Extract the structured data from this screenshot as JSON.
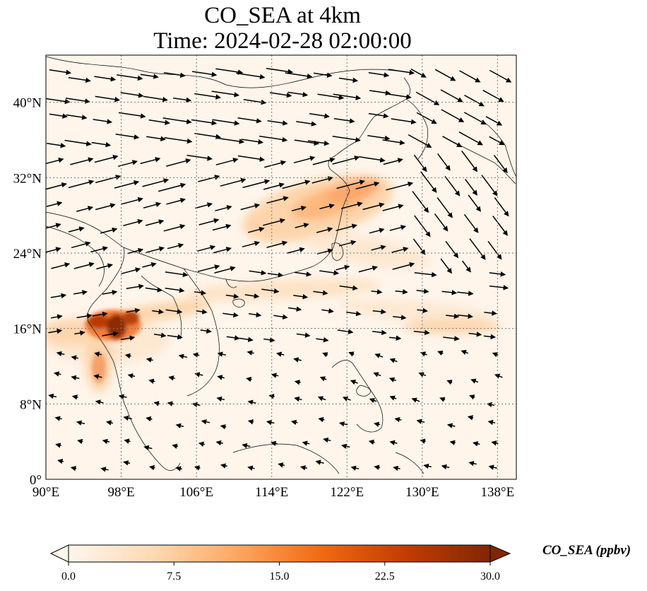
{
  "title": {
    "line1": "CO_SEA at 4km",
    "line2": "Time: 2024-02-28 02:00:00"
  },
  "map": {
    "lon_range": [
      90,
      140
    ],
    "lat_range": [
      0,
      45
    ],
    "lon_ticks": [
      90,
      98,
      106,
      114,
      122,
      130,
      138
    ],
    "lat_ticks": [
      0,
      8,
      16,
      24,
      32,
      40
    ],
    "lon_tick_labels": [
      "90°E",
      "98°E",
      "106°E",
      "114°E",
      "122°E",
      "130°E",
      "138°E"
    ],
    "lat_tick_labels": [
      "0°",
      "8°N",
      "16°N",
      "24°N",
      "32°N",
      "40°N"
    ],
    "grid": "dotted",
    "background_color": "#fff5eb"
  },
  "colorbar": {
    "label": "CO_SEA (ppbv)",
    "ticks": [
      0.0,
      7.5,
      15.0,
      22.5,
      30.0
    ],
    "tick_labels": [
      "0.0",
      "7.5",
      "15.0",
      "22.5",
      "30.0"
    ],
    "extend": "both",
    "colormap": [
      "#fff5eb",
      "#fdd9b4",
      "#fda762",
      "#f16913",
      "#c33c02",
      "#7f2704"
    ]
  }
}
